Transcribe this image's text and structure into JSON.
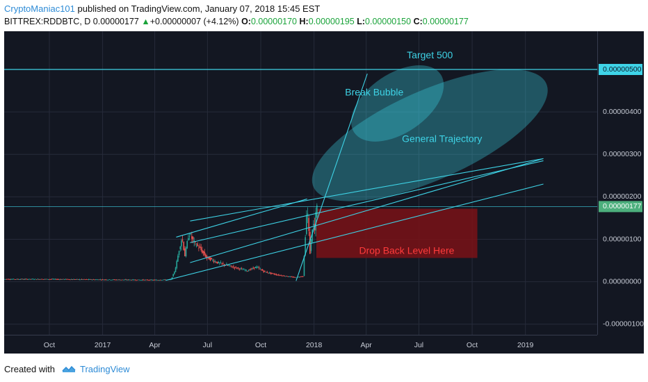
{
  "header": {
    "author": "CryptoManiac101",
    "published": " published on TradingView.com, January 07, 2018 15:45 EST",
    "symbol": "BITTREX:RDDBTC, D",
    "last": "0.00000177",
    "change": "+0.00000007 (+4.12%)",
    "open_label": "O:",
    "open": "0.00000170",
    "high_label": "H:",
    "high": "0.00000195",
    "low_label": "L:",
    "low": "0.00000150",
    "close_label": "C:",
    "close": "0.00000177"
  },
  "footer": {
    "created_with": "Created with",
    "brand": "TradingView"
  },
  "colors": {
    "background": "#131722",
    "grid": "#262b3a",
    "cyan": "#3ed3e6",
    "up": "#26a69a",
    "down": "#ef5350",
    "last_price": "#4caf7d",
    "drop_zone": "#7a1216",
    "drop_text": "#ff3b3b"
  },
  "chart_data": {
    "type": "candlestick",
    "title": "",
    "xlabel": "",
    "ylabel": "",
    "x_ticks": [
      "Oct",
      "2017",
      "Apr",
      "Jul",
      "Oct",
      "2018",
      "Apr",
      "Jul",
      "Oct",
      "2019"
    ],
    "x_tick_dates": [
      "2016-10-01",
      "2017-01-01",
      "2017-04-01",
      "2017-07-01",
      "2017-10-01",
      "2018-01-01",
      "2018-04-01",
      "2018-07-01",
      "2018-10-01",
      "2019-01-01"
    ],
    "xlim": [
      "2016-07-15",
      "2019-05-05"
    ],
    "y_ticks": [
      "0.00000500",
      "0.00000400",
      "0.00000300",
      "0.00000200",
      "0.00000100",
      "0.00000000",
      "-0.00000100"
    ],
    "y_tick_values": [
      5e-06,
      4e-06,
      3e-06,
      2e-06,
      1e-06,
      0,
      -1e-06
    ],
    "ylim": [
      -1.25e-06,
      5.9e-06
    ],
    "grid": true,
    "price_series": {
      "name": "RDDBTC",
      "points": [
        [
          "2016-07-15",
          6e-08
        ],
        [
          "2016-10-01",
          6e-08
        ],
        [
          "2017-01-01",
          5e-08
        ],
        [
          "2017-04-01",
          4e-08
        ],
        [
          "2017-05-01",
          5e-08
        ],
        [
          "2017-05-08",
          2.7e-07
        ],
        [
          "2017-05-15",
          7.5e-07
        ],
        [
          "2017-05-20",
          1.05e-06
        ],
        [
          "2017-05-25",
          6.2e-07
        ],
        [
          "2017-06-01",
          1.15e-06
        ],
        [
          "2017-06-10",
          9.2e-07
        ],
        [
          "2017-06-20",
          7.8e-07
        ],
        [
          "2017-07-01",
          5.8e-07
        ],
        [
          "2017-07-20",
          4.5e-07
        ],
        [
          "2017-08-15",
          3.5e-07
        ],
        [
          "2017-09-10",
          2.6e-07
        ],
        [
          "2017-09-25",
          3.5e-07
        ],
        [
          "2017-10-10",
          2.3e-07
        ],
        [
          "2017-11-01",
          1.6e-07
        ],
        [
          "2017-12-01",
          1e-07
        ],
        [
          "2017-12-15",
          1.3e-07
        ],
        [
          "2017-12-22",
          1.8e-06
        ],
        [
          "2017-12-27",
          7e-07
        ],
        [
          "2018-01-01",
          1.4e-06
        ],
        [
          "2018-01-04",
          1.2e-06
        ],
        [
          "2018-01-07",
          1.77e-06
        ]
      ]
    },
    "last_price": {
      "value": 1.77e-06,
      "label": "0.00000177"
    },
    "target_line": {
      "value": 5e-06,
      "label": "0.00000500"
    },
    "annotations": [
      {
        "text": "Target 500",
        "x": "2018-07-20",
        "y": 5.32e-06
      },
      {
        "text": "Break Bubble",
        "x": "2018-04-15",
        "y": 4.45e-06
      },
      {
        "text": "General Trajectory",
        "x": "2018-08-10",
        "y": 3.35e-06
      },
      {
        "text": "Drop Back Level Here",
        "x": "2018-06-10",
        "y": 7.2e-07
      }
    ],
    "drop_zone": {
      "x0": "2018-01-05",
      "x1": "2018-10-10",
      "y0": 5.6e-07,
      "y1": 1.72e-06
    },
    "trend_lines": [
      {
        "x0": "2017-06-01",
        "y0": 1.43e-06,
        "x1": "2019-02-01",
        "y1": 2.9e-06
      },
      {
        "x0": "2017-06-01",
        "y0": 9.2e-07,
        "x1": "2019-02-01",
        "y1": 2.85e-06
      },
      {
        "x0": "2017-06-01",
        "y0": 4.5e-07,
        "x1": "2019-02-01",
        "y1": 2.9e-06
      },
      {
        "x0": "2017-04-20",
        "y0": 3e-08,
        "x1": "2019-02-01",
        "y1": 2.3e-06
      },
      {
        "x0": "2017-12-01",
        "y0": 2e-08,
        "x1": "2018-04-03",
        "y1": 4.9e-06
      },
      {
        "x0": "2017-05-08",
        "y0": 1.05e-06,
        "x1": "2017-12-20",
        "y1": 1.95e-06
      }
    ],
    "ellipses": [
      {
        "cx": "2018-05-25",
        "cy": 4.2e-06,
        "rx_days": 90,
        "ry": 7e-07,
        "rotate": -34
      },
      {
        "cx": "2018-07-20",
        "cy": 3.45e-06,
        "rx_days": 220,
        "ry": 1.05e-06,
        "rotate": -24
      }
    ]
  }
}
